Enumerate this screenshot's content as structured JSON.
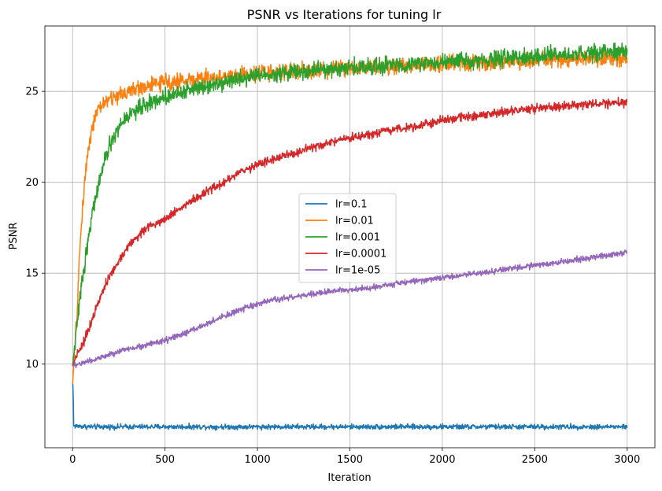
{
  "chart_data": {
    "type": "line",
    "title": "PSNR vs Iterations for tuning lr",
    "xlabel": "Iteration",
    "ylabel": "PSNR",
    "xlim": [
      -150,
      3150
    ],
    "ylim": [
      5.4,
      28.6
    ],
    "xticks": [
      0,
      500,
      1000,
      1500,
      2000,
      2500,
      3000
    ],
    "yticks": [
      10,
      15,
      20,
      25
    ],
    "grid": true,
    "legend_position": "center",
    "series": [
      {
        "name": "lr=0.1",
        "color": "#1f77b4",
        "noise": 0.07,
        "points": [
          [
            0,
            9.0
          ],
          [
            3,
            8.6
          ],
          [
            6,
            6.6
          ],
          [
            100,
            6.55
          ],
          [
            500,
            6.55
          ],
          [
            1000,
            6.55
          ],
          [
            1500,
            6.55
          ],
          [
            2000,
            6.55
          ],
          [
            2500,
            6.55
          ],
          [
            3000,
            6.55
          ]
        ]
      },
      {
        "name": "lr=0.01",
        "color": "#ff7f0e",
        "noise": 0.22,
        "points": [
          [
            0,
            8.9
          ],
          [
            10,
            10.5
          ],
          [
            25,
            13.0
          ],
          [
            40,
            16.5
          ],
          [
            60,
            19.5
          ],
          [
            80,
            21.5
          ],
          [
            100,
            22.8
          ],
          [
            130,
            23.8
          ],
          [
            170,
            24.4
          ],
          [
            250,
            24.8
          ],
          [
            300,
            25.0
          ],
          [
            400,
            25.3
          ],
          [
            500,
            25.5
          ],
          [
            600,
            25.6
          ],
          [
            800,
            25.8
          ],
          [
            1000,
            26.0
          ],
          [
            1500,
            26.3
          ],
          [
            2000,
            26.5
          ],
          [
            2500,
            26.7
          ],
          [
            3000,
            26.8
          ]
        ]
      },
      {
        "name": "lr=0.001",
        "color": "#2ca02c",
        "noise": 0.22,
        "points": [
          [
            0,
            9.9
          ],
          [
            20,
            11.8
          ],
          [
            50,
            14.5
          ],
          [
            80,
            16.5
          ],
          [
            100,
            18.0
          ],
          [
            150,
            20.3
          ],
          [
            200,
            22.0
          ],
          [
            250,
            23.0
          ],
          [
            300,
            23.7
          ],
          [
            400,
            24.3
          ],
          [
            500,
            24.7
          ],
          [
            600,
            25.0
          ],
          [
            700,
            25.3
          ],
          [
            800,
            25.5
          ],
          [
            1000,
            25.9
          ],
          [
            1500,
            26.3
          ],
          [
            2000,
            26.6
          ],
          [
            2500,
            26.9
          ],
          [
            3000,
            27.2
          ]
        ]
      },
      {
        "name": "lr=0.0001",
        "color": "#d62728",
        "noise": 0.12,
        "points": [
          [
            0,
            9.9
          ],
          [
            25,
            10.6
          ],
          [
            60,
            11.2
          ],
          [
            100,
            12.3
          ],
          [
            150,
            13.8
          ],
          [
            200,
            14.8
          ],
          [
            300,
            16.5
          ],
          [
            400,
            17.5
          ],
          [
            500,
            18.0
          ],
          [
            600,
            18.7
          ],
          [
            700,
            19.3
          ],
          [
            800,
            19.9
          ],
          [
            900,
            20.5
          ],
          [
            1000,
            21.0
          ],
          [
            1200,
            21.6
          ],
          [
            1400,
            22.2
          ],
          [
            1600,
            22.6
          ],
          [
            1800,
            23.0
          ],
          [
            2000,
            23.4
          ],
          [
            2200,
            23.7
          ],
          [
            2400,
            23.95
          ],
          [
            2600,
            24.15
          ],
          [
            2800,
            24.3
          ],
          [
            3000,
            24.4
          ]
        ]
      },
      {
        "name": "lr=1e-05",
        "color": "#9467bd",
        "noise": 0.08,
        "points": [
          [
            0,
            9.9
          ],
          [
            100,
            10.2
          ],
          [
            200,
            10.5
          ],
          [
            300,
            10.85
          ],
          [
            400,
            11.05
          ],
          [
            500,
            11.3
          ],
          [
            600,
            11.65
          ],
          [
            700,
            12.1
          ],
          [
            800,
            12.55
          ],
          [
            900,
            12.95
          ],
          [
            1000,
            13.3
          ],
          [
            1100,
            13.55
          ],
          [
            1200,
            13.7
          ],
          [
            1300,
            13.85
          ],
          [
            1400,
            14.0
          ],
          [
            1500,
            14.1
          ],
          [
            1600,
            14.2
          ],
          [
            1800,
            14.5
          ],
          [
            2000,
            14.75
          ],
          [
            2200,
            15.0
          ],
          [
            2400,
            15.3
          ],
          [
            2600,
            15.55
          ],
          [
            2800,
            15.85
          ],
          [
            3000,
            16.15
          ]
        ]
      }
    ]
  }
}
